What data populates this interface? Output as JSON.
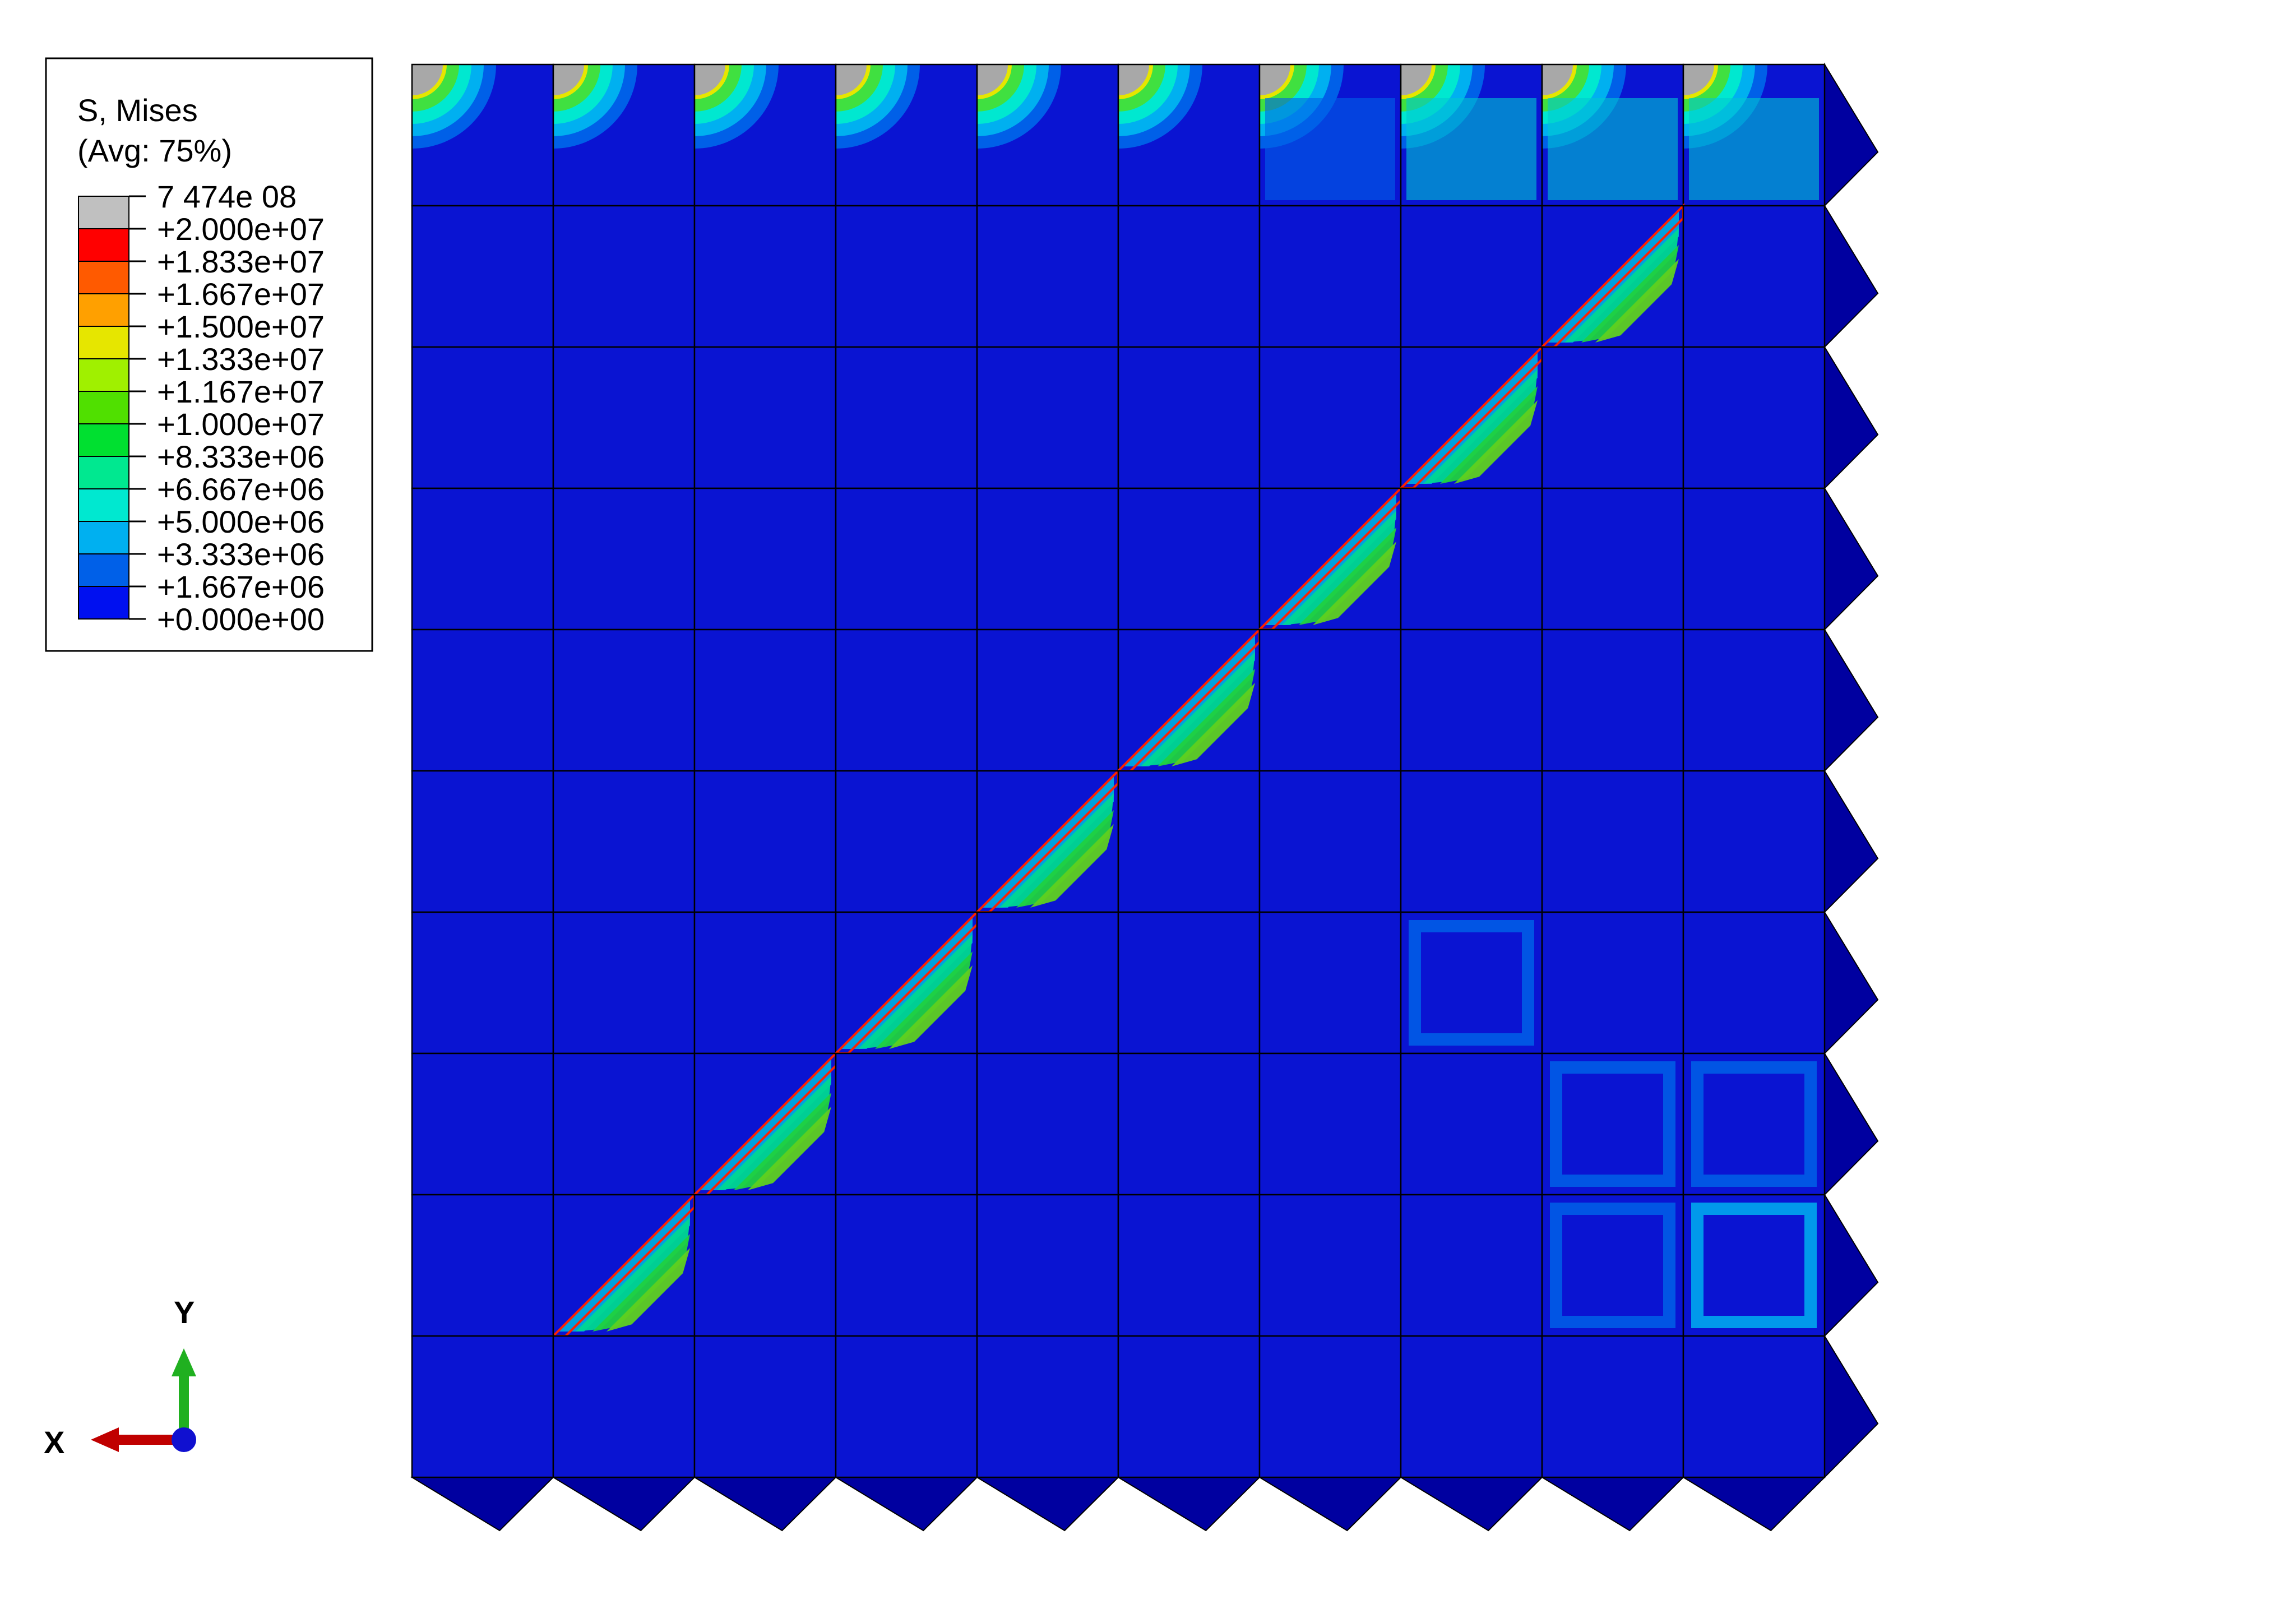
{
  "legend": {
    "title_line1": "S, Mises",
    "title_line2": "(Avg: 75%)",
    "entries": [
      {
        "label": "7 474e  08",
        "color": "#c0c0c0"
      },
      {
        "label": "+2.000e+07",
        "color": "#ff0000"
      },
      {
        "label": "+1.833e+07",
        "color": "#ff5a00"
      },
      {
        "label": "+1.667e+07",
        "color": "#ffa000"
      },
      {
        "label": "+1.500e+07",
        "color": "#e6e600"
      },
      {
        "label": "+1.333e+07",
        "color": "#a0f000"
      },
      {
        "label": "+1.167e+07",
        "color": "#50e000"
      },
      {
        "label": "+1.000e+07",
        "color": "#00e030"
      },
      {
        "label": "+8.333e+06",
        "color": "#00e890"
      },
      {
        "label": "+6.667e+06",
        "color": "#00e8d0"
      },
      {
        "label": "+5.000e+06",
        "color": "#00b0f0"
      },
      {
        "label": "+3.333e+06",
        "color": "#0060e8"
      },
      {
        "label": "+1.667e+06",
        "color": "#0010f0"
      },
      {
        "label": "+0.000e+00",
        "color": "#0010f0"
      }
    ]
  },
  "axes_triad": {
    "x_label": "X",
    "y_label": "Y"
  },
  "mesh": {
    "rows": 10,
    "cols": 10,
    "base_color": "#0a14d2",
    "edge_color": "#0000a0",
    "diagonal_band_colors": [
      "#00a8e0",
      "#00d890",
      "#20d040",
      "#60d020"
    ],
    "hot_spot_color": "#ff2000",
    "top_row_gray_color": "#a8a8a8"
  }
}
